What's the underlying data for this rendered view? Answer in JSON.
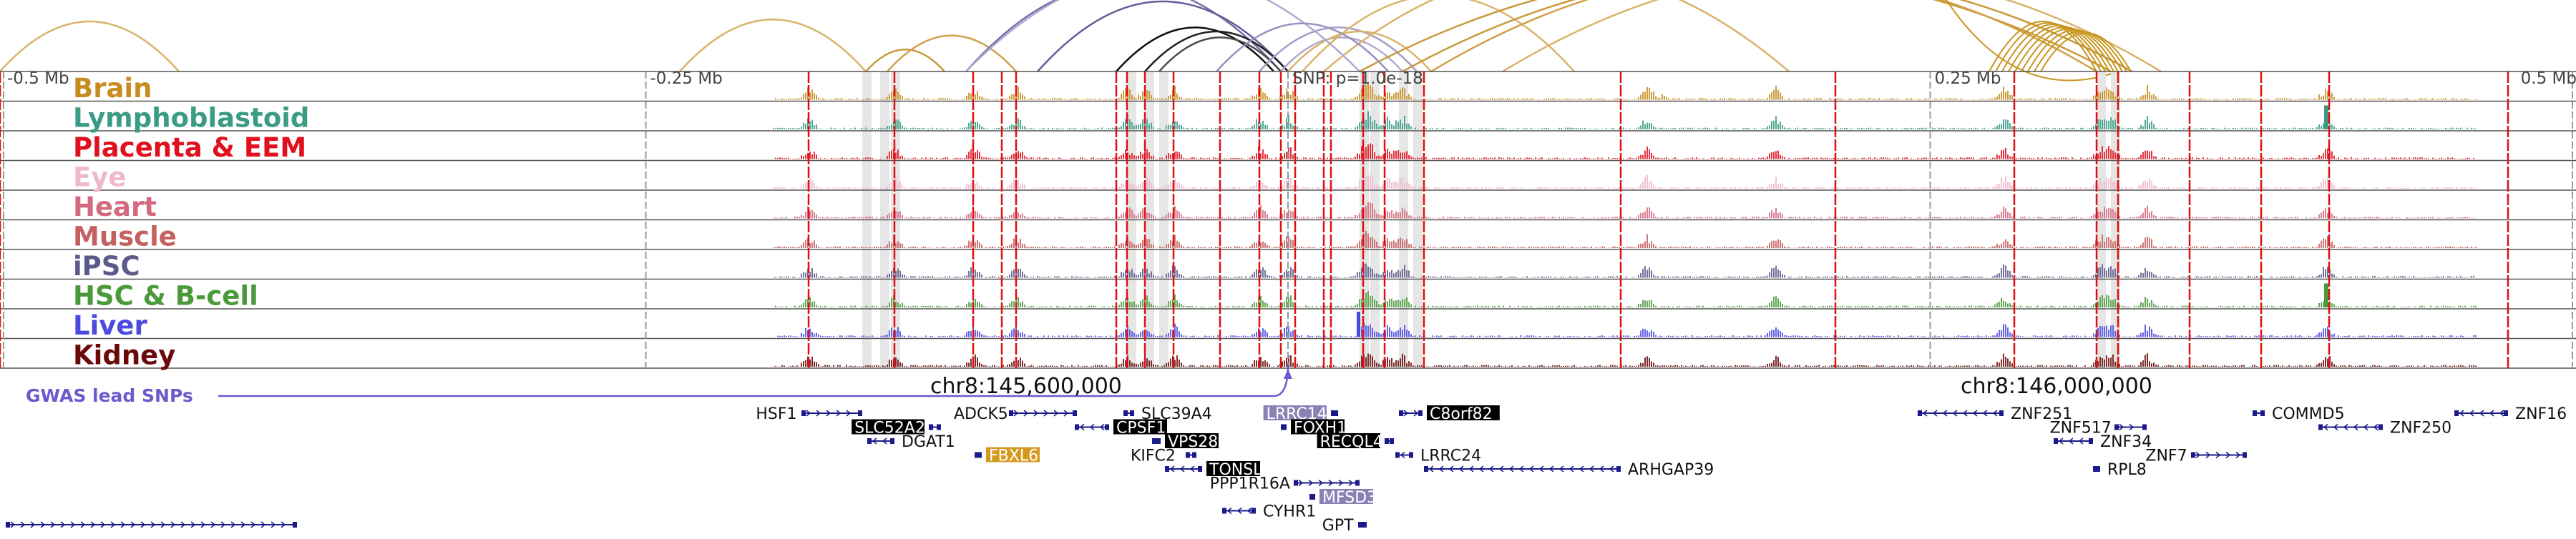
{
  "axis": {
    "ticks": [
      {
        "label": "-0.5 Mb",
        "bp": -500000
      },
      {
        "label": "-0.25 Mb",
        "bp": -250000
      },
      {
        "label": "SNP: p=1.0e-18",
        "bp": 0
      },
      {
        "label": "0.25 Mb",
        "bp": 250000
      },
      {
        "label": "0.5 Mb",
        "bp": 500000
      }
    ],
    "range_bp": [
      -500000,
      500000
    ]
  },
  "tracks": [
    {
      "name": "Brain",
      "color": "#c88b1f"
    },
    {
      "name": "Lymphoblastoid",
      "color": "#3a9b86"
    },
    {
      "name": "Placenta & EEM",
      "color": "#e0101e"
    },
    {
      "name": "Eye",
      "color": "#f0b8cc"
    },
    {
      "name": "Heart",
      "color": "#d46a7e"
    },
    {
      "name": "Muscle",
      "color": "#c46060"
    },
    {
      "name": "iPSC",
      "color": "#5c5a8a"
    },
    {
      "name": "HSC & B-cell",
      "color": "#4a9a3c"
    },
    {
      "name": "Liver",
      "color": "#4a4ae0"
    },
    {
      "name": "Kidney",
      "color": "#6a0a0a"
    }
  ],
  "gwas": {
    "label": "GWAS lead SNPs",
    "color": "#6a5acd"
  },
  "coordinates": {
    "left": "chr8:145,600,000",
    "right": "chr8:146,000,000"
  },
  "genes": [
    {
      "name": "HSF1",
      "row": 0,
      "start": 1120,
      "end": 1205,
      "strand": "+",
      "style": "plain",
      "label_pos": "left"
    },
    {
      "name": "ADCK5",
      "row": 0,
      "start": 1410,
      "end": 1505,
      "strand": "+",
      "style": "plain",
      "label_pos": "left"
    },
    {
      "name": "SLC39A4",
      "row": 0,
      "start": 1570,
      "end": 1585,
      "strand": "-",
      "style": "plain",
      "label_pos": "right"
    },
    {
      "name": "LRRC14",
      "row": 0,
      "start": 1860,
      "end": 1870,
      "strand": "+",
      "style": "purple",
      "label_pos": "left"
    },
    {
      "name": "C8orf82",
      "row": 0,
      "start": 1955,
      "end": 1988,
      "strand": "+",
      "style": "black",
      "label_pos": "right"
    },
    {
      "name": "ZNF251",
      "row": 0,
      "start": 2680,
      "end": 2800,
      "strand": "-",
      "style": "plain",
      "label_pos": "right"
    },
    {
      "name": "COMMD5",
      "row": 0,
      "start": 3148,
      "end": 3165,
      "strand": "-",
      "style": "plain",
      "label_pos": "right"
    },
    {
      "name": "ZNF16",
      "row": 0,
      "start": 3430,
      "end": 3505,
      "strand": "-",
      "style": "plain",
      "label_pos": "right"
    },
    {
      "name": "SLC52A2",
      "row": 1,
      "start": 1298,
      "end": 1315,
      "strand": "+",
      "style": "black",
      "label_pos": "left"
    },
    {
      "name": "CPSF1",
      "row": 1,
      "start": 1502,
      "end": 1550,
      "strand": "-",
      "style": "black",
      "label_pos": "right"
    },
    {
      "name": "FOXH1",
      "row": 1,
      "start": 1790,
      "end": 1798,
      "strand": "-",
      "style": "black",
      "label_pos": "right"
    },
    {
      "name": "ZNF517",
      "row": 1,
      "start": 2955,
      "end": 3000,
      "strand": "+",
      "style": "plain",
      "label_pos": "left"
    },
    {
      "name": "ZNF250",
      "row": 1,
      "start": 3240,
      "end": 3330,
      "strand": "-",
      "style": "plain",
      "label_pos": "right"
    },
    {
      "name": "DGAT1",
      "row": 2,
      "start": 1212,
      "end": 1250,
      "strand": "-",
      "style": "plain",
      "label_pos": "right"
    },
    {
      "name": "VPS28",
      "row": 2,
      "start": 1610,
      "end": 1622,
      "strand": "-",
      "style": "black",
      "label_pos": "right"
    },
    {
      "name": "RECQL4",
      "row": 2,
      "start": 1935,
      "end": 1948,
      "strand": "-",
      "style": "black",
      "label_pos": "left"
    },
    {
      "name": "ZNF34",
      "row": 2,
      "start": 2870,
      "end": 2925,
      "strand": "-",
      "style": "plain",
      "label_pos": "right"
    },
    {
      "name": "FBXL6",
      "row": 3,
      "start": 1362,
      "end": 1372,
      "strand": "-",
      "style": "gold",
      "label_pos": "right"
    },
    {
      "name": "KIFC2",
      "row": 3,
      "start": 1657,
      "end": 1672,
      "strand": "+",
      "style": "plain",
      "label_pos": "left"
    },
    {
      "name": "LRRC24",
      "row": 3,
      "start": 1950,
      "end": 1975,
      "strand": "-",
      "style": "plain",
      "label_pos": "right"
    },
    {
      "name": "ZNF7",
      "row": 3,
      "start": 3062,
      "end": 3140,
      "strand": "+",
      "style": "plain",
      "label_pos": "left"
    },
    {
      "name": "TONSL",
      "row": 4,
      "start": 1628,
      "end": 1680,
      "strand": "-",
      "style": "black",
      "label_pos": "right"
    },
    {
      "name": "ARHGAP39",
      "row": 4,
      "start": 1990,
      "end": 2265,
      "strand": "-",
      "style": "plain",
      "label_pos": "right"
    },
    {
      "name": "RPL8",
      "row": 4,
      "start": 2925,
      "end": 2935,
      "strand": "-",
      "style": "plain",
      "label_pos": "right"
    },
    {
      "name": "PPP1R16A",
      "row": 5,
      "start": 1808,
      "end": 1900,
      "strand": "+",
      "style": "plain",
      "label_pos": "left"
    },
    {
      "name": "MFSD3",
      "row": 6,
      "start": 1830,
      "end": 1838,
      "strand": "+",
      "style": "purple",
      "label_pos": "right"
    },
    {
      "name": "CYHR1",
      "row": 7,
      "start": 1708,
      "end": 1755,
      "strand": "-",
      "style": "plain",
      "label_pos": "right"
    },
    {
      "name": "GPT",
      "row": 8,
      "start": 1898,
      "end": 1910,
      "strand": "+",
      "style": "plain",
      "label_pos": "left"
    },
    {
      "name": "",
      "row": 8,
      "start": 8,
      "end": 415,
      "strand": "+",
      "style": "plain",
      "label_pos": "none"
    }
  ]
}
